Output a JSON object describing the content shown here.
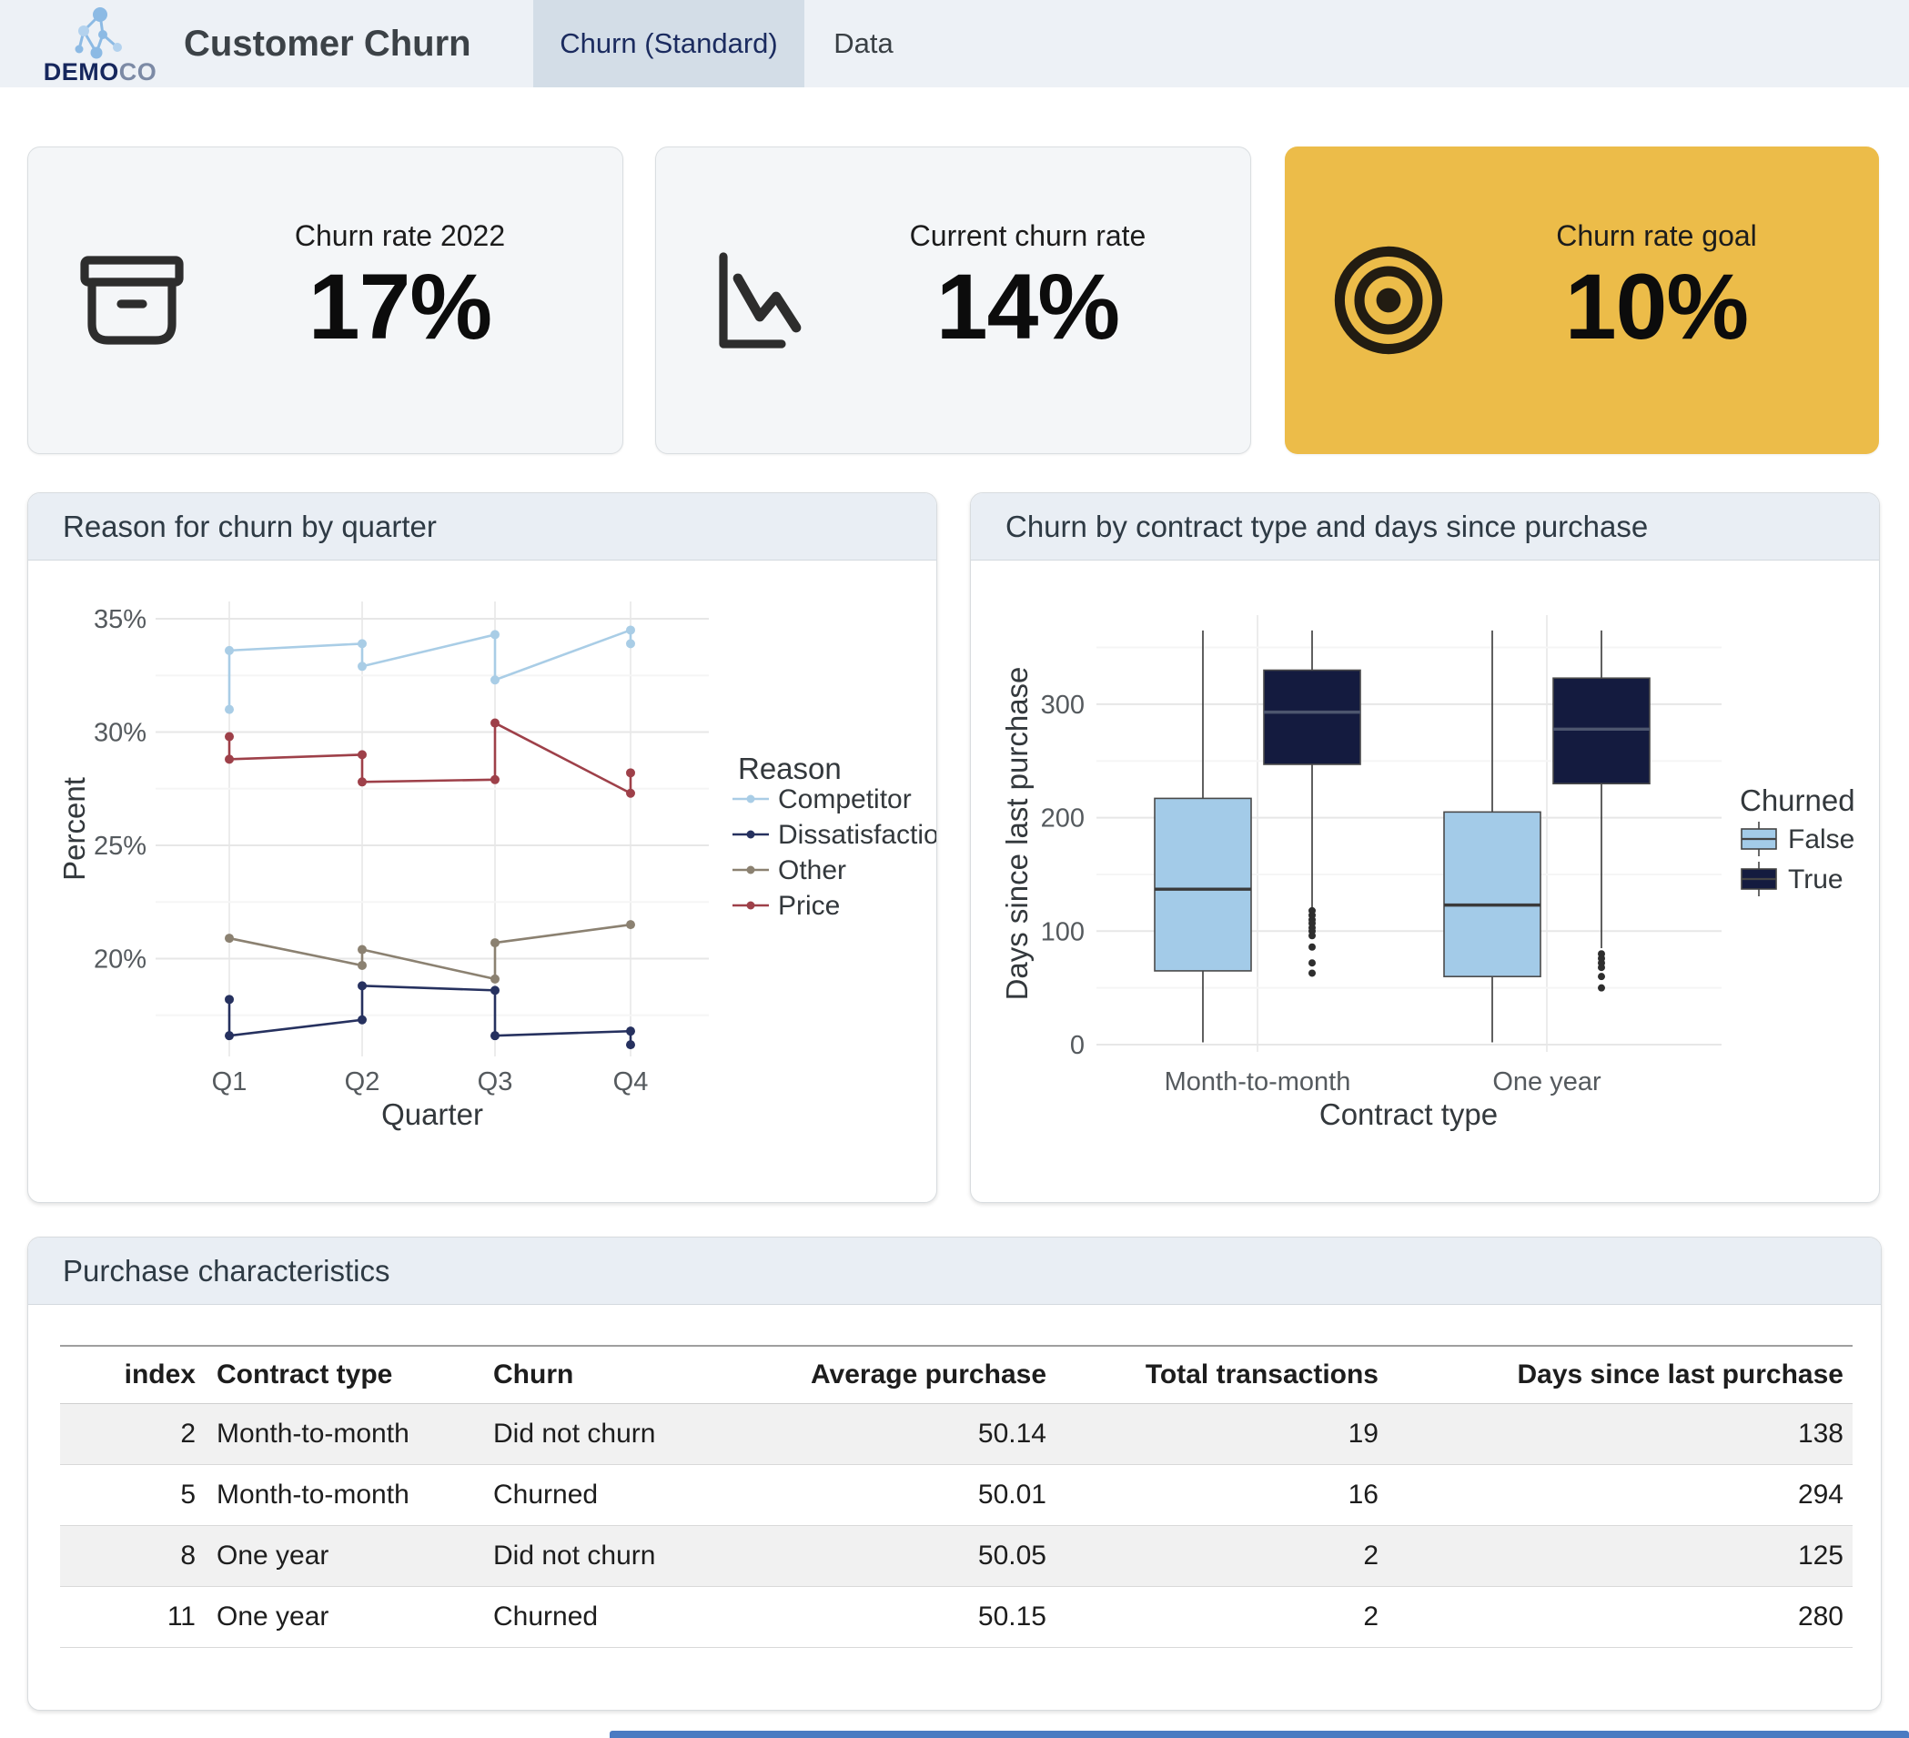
{
  "header": {
    "logo_text_bold": "DEMO",
    "logo_text_light": "CO",
    "title": "Customer Churn",
    "tabs": [
      {
        "label": "Churn (Standard)",
        "active": true
      },
      {
        "label": "Data",
        "active": false
      }
    ]
  },
  "kpis": [
    {
      "title": "Churn rate 2022",
      "value": "17%",
      "icon": "archive-box-icon"
    },
    {
      "title": "Current churn rate",
      "value": "14%",
      "icon": "trend-down-icon"
    },
    {
      "title": "Churn rate goal",
      "value": "10%",
      "icon": "target-icon"
    }
  ],
  "colors": {
    "header_bg": "#edf1f6",
    "active_tab_bg": "#d3dde7",
    "card_bg": "#f4f6f8",
    "gold_card_bg": "#ecbc49",
    "panel_header_bg": "#e9eef4",
    "logo_navy": "#16275d",
    "bottom_bar_blue": "#4a7bc2",
    "box_false_fill": "#a3cbe8",
    "box_true_fill": "#141b3f"
  },
  "chart_data": [
    {
      "type": "line",
      "title": "Reason for churn by quarter",
      "xlabel": "Quarter",
      "ylabel": "Percent",
      "x_categories": [
        "Q1",
        "Q2",
        "Q3",
        "Q4"
      ],
      "y_ticks": [
        20,
        25,
        30,
        35
      ],
      "y_minor_ticks": [
        17.5,
        22.5,
        27.5,
        32.5
      ],
      "y_tick_suffix": "%",
      "ylim": [
        15.6,
        35.8
      ],
      "grid": true,
      "legend_title": "Reason",
      "legend_position": "right",
      "series": [
        {
          "name": "Competitor",
          "color": "#a9cde6",
          "points": [
            [
              0,
              31.0
            ],
            [
              0,
              33.6
            ],
            [
              1,
              33.9
            ],
            [
              1,
              32.9
            ],
            [
              2,
              34.3
            ],
            [
              2,
              32.3
            ],
            [
              3,
              34.5
            ],
            [
              3,
              33.9
            ]
          ]
        },
        {
          "name": "Dissatisfaction",
          "color": "#26315f",
          "points": [
            [
              0,
              18.2
            ],
            [
              0,
              16.6
            ],
            [
              1,
              17.3
            ],
            [
              1,
              18.8
            ],
            [
              2,
              18.6
            ],
            [
              2,
              16.6
            ],
            [
              3,
              16.8
            ],
            [
              3,
              16.2
            ]
          ]
        },
        {
          "name": "Other",
          "color": "#8b8171",
          "points": [
            [
              0,
              20.9
            ],
            [
              1,
              19.7
            ],
            [
              1,
              20.4
            ],
            [
              2,
              19.1
            ],
            [
              2,
              20.7
            ],
            [
              3,
              21.5
            ]
          ]
        },
        {
          "name": "Price",
          "color": "#9e4049",
          "points": [
            [
              0,
              29.8
            ],
            [
              0,
              28.8
            ],
            [
              1,
              29.0
            ],
            [
              1,
              27.8
            ],
            [
              2,
              27.9
            ],
            [
              2,
              30.4
            ],
            [
              3,
              27.3
            ],
            [
              3,
              28.2
            ]
          ]
        }
      ]
    },
    {
      "type": "boxplot",
      "title": "Churn by contract type and days since purchase",
      "xlabel": "Contract type",
      "ylabel": "Days since last purchase",
      "x_categories": [
        "Month-to-month",
        "One year"
      ],
      "y_ticks": [
        0,
        100,
        200,
        300
      ],
      "y_minor_ticks": [
        50,
        150,
        250,
        350
      ],
      "ylim": [
        -15,
        390
      ],
      "grid": true,
      "legend_title": "Churned",
      "legend_entries": [
        "False",
        "True"
      ],
      "groups": [
        {
          "category": "Month-to-month",
          "churned": "False",
          "color": "#a3cbe8",
          "whisker_low": 2,
          "q1": 65,
          "median": 137,
          "q3": 217,
          "whisker_high": 365,
          "outliers": []
        },
        {
          "category": "Month-to-month",
          "churned": "True",
          "color": "#141b3f",
          "whisker_low": 120,
          "q1": 247,
          "median": 293,
          "q3": 330,
          "whisker_high": 365,
          "outliers": [
            118,
            114,
            110,
            107,
            103,
            100,
            96,
            86,
            72,
            63
          ]
        },
        {
          "category": "One year",
          "churned": "False",
          "color": "#a3cbe8",
          "whisker_low": 2,
          "q1": 60,
          "median": 123,
          "q3": 205,
          "whisker_high": 365,
          "outliers": []
        },
        {
          "category": "One year",
          "churned": "True",
          "color": "#141b3f",
          "whisker_low": 85,
          "q1": 230,
          "median": 278,
          "q3": 323,
          "whisker_high": 365,
          "outliers": [
            80,
            76,
            72,
            68,
            60,
            50
          ]
        }
      ]
    }
  ],
  "panels": {
    "reason_chart_title": "Reason for churn by quarter",
    "box_chart_title": "Churn by contract type and days since purchase"
  },
  "table": {
    "title": "Purchase characteristics",
    "columns": [
      {
        "label": "index",
        "align": "right"
      },
      {
        "label": "Contract type",
        "align": "left"
      },
      {
        "label": "Churn",
        "align": "left"
      },
      {
        "label": "Average purchase",
        "align": "right"
      },
      {
        "label": "Total transactions",
        "align": "right"
      },
      {
        "label": "Days since last purchase",
        "align": "right"
      }
    ],
    "rows": [
      [
        "2",
        "Month-to-month",
        "Did not churn",
        "50.14",
        "19",
        "138"
      ],
      [
        "5",
        "Month-to-month",
        "Churned",
        "50.01",
        "16",
        "294"
      ],
      [
        "8",
        "One year",
        "Did not churn",
        "50.05",
        "2",
        "125"
      ],
      [
        "11",
        "One year",
        "Churned",
        "50.15",
        "2",
        "280"
      ]
    ]
  }
}
